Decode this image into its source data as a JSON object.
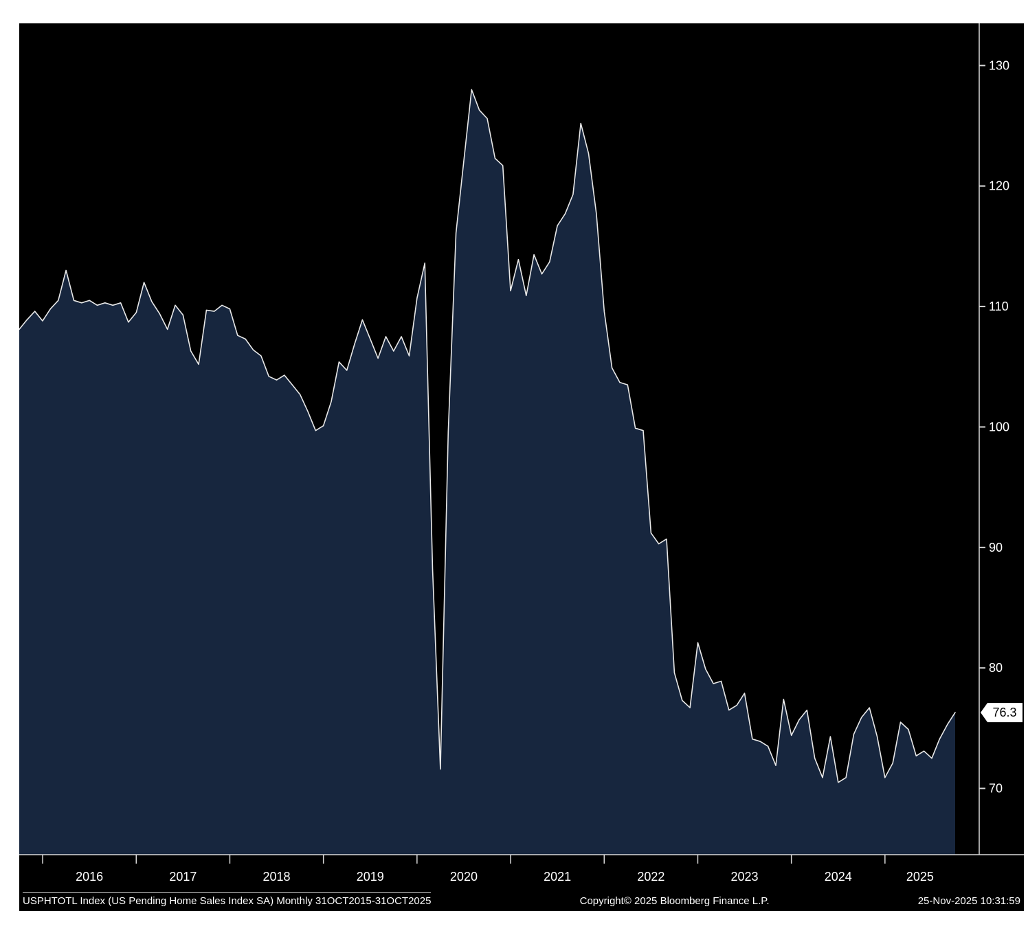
{
  "chart_data": {
    "type": "area",
    "title": "USPHTOTL Index (US Pending Home Sales Index SA)",
    "series_name": "USPHTOTL Index",
    "frequency": "Monthly",
    "x_start": "2015-10",
    "x_end": "2025-10",
    "values": [
      108.1,
      108.9,
      109.6,
      108.8,
      109.8,
      110.5,
      113.0,
      110.5,
      110.3,
      110.5,
      110.1,
      110.3,
      110.1,
      110.3,
      108.7,
      109.5,
      112.0,
      110.4,
      109.4,
      108.1,
      110.1,
      109.3,
      106.3,
      105.2,
      109.7,
      109.6,
      110.1,
      109.8,
      107.6,
      107.3,
      106.4,
      105.9,
      104.2,
      103.9,
      104.3,
      103.5,
      102.7,
      101.3,
      99.7,
      100.1,
      102.1,
      105.4,
      104.7,
      106.9,
      108.9,
      107.3,
      105.7,
      107.5,
      106.3,
      107.5,
      105.9,
      110.7,
      113.6,
      88.2,
      71.6,
      99.6,
      116.1,
      122.1,
      128.0,
      126.3,
      125.6,
      122.3,
      121.7,
      111.3,
      113.9,
      110.9,
      114.3,
      112.7,
      113.7,
      116.7,
      117.7,
      119.3,
      125.2,
      122.7,
      117.7,
      109.6,
      104.9,
      103.7,
      103.5,
      99.9,
      99.7,
      91.2,
      90.3,
      90.7,
      79.6,
      77.3,
      76.7,
      82.1,
      79.9,
      78.7,
      78.9,
      76.5,
      76.9,
      77.9,
      74.1,
      73.9,
      73.5,
      71.9,
      77.4,
      74.4,
      75.7,
      76.5,
      72.5,
      70.9,
      74.3,
      70.5,
      70.9,
      74.5,
      75.9,
      76.7,
      74.3,
      70.9,
      72.1,
      75.5,
      74.9,
      72.7,
      73.1,
      72.5,
      74.1,
      75.3,
      76.3
    ],
    "ylim": [
      64.5,
      133.5
    ],
    "y_ticks": [
      130,
      120,
      110,
      100,
      90,
      80,
      70
    ],
    "x_tick_years": [
      "2016",
      "2017",
      "2018",
      "2019",
      "2020",
      "2021",
      "2022",
      "2023",
      "2024",
      "2025"
    ],
    "first_year_month_index": 3,
    "last_value": "76.3",
    "grid": "off",
    "legend": "none",
    "line_color": "#e8e8e8",
    "fill_color": "#17263e",
    "axis_color": "#d9d9d9",
    "background_color": "#000000",
    "last_value_badge_bg": "#ffffff",
    "last_value_badge_text_color": "#000000"
  },
  "footer": {
    "left": "USPHTOTL Index (US Pending Home Sales Index SA) Monthly 31OCT2015-31OCT2025",
    "center": "Copyright© 2025 Bloomberg Finance L.P.",
    "right": "25-Nov-2025 10:31:59"
  }
}
